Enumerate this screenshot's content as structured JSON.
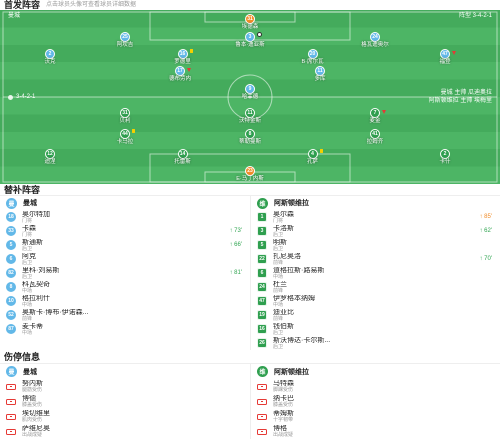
{
  "header": {
    "title": "首发阵容",
    "hint": "点击球员头像可查看球员详细数据"
  },
  "colors": {
    "home_jersey": "#62b8e8",
    "away_jersey": "#2f9f4f",
    "gk_jersey": "#f28c28",
    "sub_in": "#2ea44f"
  },
  "pitch": {
    "top_left": "曼城",
    "top_right": "阵型 3-4-2-1",
    "mid_left": "3-4-2-1",
    "mid_right_1": "曼城 主帅 瓜迪奥拉",
    "mid_right_2": "阿斯顿维拉 主帅 埃梅里"
  },
  "lineup": {
    "home": {
      "rows": [
        [
          {
            "number": "31",
            "name": "埃德森"
          }
        ],
        [
          {
            "number": "25",
            "name": "阿坎吉"
          },
          {
            "number": "3",
            "name": "鲁本·迪亚斯",
            "event_icon": "goal"
          },
          {
            "number": "24",
            "name": "格瓦迪奥尔"
          }
        ],
        [
          {
            "number": "2",
            "name": "沃克"
          },
          {
            "number": "16",
            "name": "罗德里",
            "event_icon": "yellow-card"
          },
          {
            "number": "20",
            "name": "B·席尔瓦"
          },
          {
            "number": "47",
            "name": "福登",
            "event_icon": "sub-out"
          }
        ],
        [
          {
            "number": "17",
            "name": "德布劳内",
            "event_icon": "sub-out"
          },
          {
            "number": "11",
            "name": "多库"
          }
        ],
        [
          {
            "number": "9",
            "name": "哈兰德"
          }
        ]
      ]
    },
    "away": {
      "rows": [
        [
          {
            "number": "31",
            "name": "贝利"
          },
          {
            "number": "11",
            "name": "沃特金斯"
          },
          {
            "number": "7",
            "name": "麦金",
            "event_icon": "sub-out"
          }
        ],
        [
          {
            "number": "44",
            "name": "卡马拉",
            "event_icon": "yellow-card"
          },
          {
            "number": "8",
            "name": "蒂勒曼斯"
          },
          {
            "number": "41",
            "name": "拉姆齐"
          }
        ],
        [
          {
            "number": "12",
            "name": "迪涅"
          },
          {
            "number": "14",
            "name": "托雷斯"
          },
          {
            "number": "4",
            "name": "孔萨",
            "event_icon": "yellow-card"
          },
          {
            "number": "2",
            "name": "卡什"
          }
        ],
        [
          {
            "number": "23",
            "name": "E·马丁内斯"
          }
        ]
      ]
    }
  },
  "subs": {
    "title": "替补阵容",
    "home": {
      "team": "曼城",
      "logo": "曼",
      "players": [
        {
          "number": "18",
          "name": "奥尔特加",
          "pos": "门将"
        },
        {
          "number": "33",
          "name": "卡森",
          "pos": "门将",
          "event": "↑ 73'"
        },
        {
          "number": "5",
          "name": "斯通斯",
          "pos": "后卫",
          "event": "↑ 66'"
        },
        {
          "number": "6",
          "name": "阿克",
          "pos": "后卫"
        },
        {
          "number": "82",
          "name": "里科·刘易斯",
          "pos": "后卫",
          "event": "↑ 81'"
        },
        {
          "number": "8",
          "name": "科瓦契奇",
          "pos": "中场"
        },
        {
          "number": "10",
          "name": "格拉利什",
          "pos": "中场"
        },
        {
          "number": "52",
          "name": "奥斯卡·博布·伊诺森...",
          "pos": "前锋"
        },
        {
          "number": "87",
          "name": "麦卡蒂",
          "pos": "中场"
        }
      ]
    },
    "away": {
      "team": "阿斯顿维拉",
      "logo": "维",
      "players": [
        {
          "number": "1",
          "name": "奥尔森",
          "pos": "门将",
          "event": "↑ 85'"
        },
        {
          "number": "3",
          "name": "卡洛斯",
          "pos": "后卫",
          "event": "↑ 62'"
        },
        {
          "number": "5",
          "name": "明斯",
          "pos": "后卫"
        },
        {
          "number": "22",
          "name": "扎尼奥洛",
          "pos": "前锋",
          "event": "↑ 70'"
        },
        {
          "number": "6",
          "name": "道格拉斯·路易斯",
          "pos": "中场"
        },
        {
          "number": "24",
          "name": "杜兰",
          "pos": "前锋"
        },
        {
          "number": "47",
          "name": "伊罗格本纳姆",
          "pos": "中场"
        },
        {
          "number": "19",
          "name": "迪亚比",
          "pos": "前锋"
        },
        {
          "number": "16",
          "name": "钱伯斯",
          "pos": "后卫"
        },
        {
          "number": "26",
          "name": "斯沃博达·卡尔斯...",
          "pos": "后卫"
        }
      ]
    }
  },
  "injury": {
    "title": "伤停信息",
    "home": {
      "team": "曼城",
      "logo": "曼",
      "players": [
        {
          "name": "努内斯",
          "status": "腿筋受伤"
        },
        {
          "name": "博德",
          "status": "膝盖受伤"
        },
        {
          "name": "埃切维里",
          "status": "肌肉受伤"
        },
        {
          "name": "萨维尼奥",
          "status": "出战成疑"
        }
      ]
    },
    "away": {
      "team": "阿斯顿维拉",
      "logo": "维",
      "players": [
        {
          "name": "马特森",
          "status": "脚踝受伤"
        },
        {
          "name": "纳卡巴",
          "status": "膝盖受伤"
        },
        {
          "name": "蒂姆斯",
          "status": "十字韧带"
        },
        {
          "name": "博格",
          "status": "出战成疑"
        }
      ]
    }
  }
}
